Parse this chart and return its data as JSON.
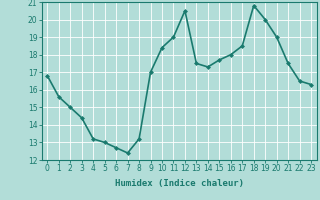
{
  "x": [
    0,
    1,
    2,
    3,
    4,
    5,
    6,
    7,
    8,
    9,
    10,
    11,
    12,
    13,
    14,
    15,
    16,
    17,
    18,
    19,
    20,
    21,
    22,
    23
  ],
  "y": [
    16.8,
    15.6,
    15.0,
    14.4,
    13.2,
    13.0,
    12.7,
    12.4,
    13.2,
    17.0,
    18.4,
    19.0,
    20.5,
    17.5,
    17.3,
    17.7,
    18.0,
    18.5,
    20.8,
    20.0,
    19.0,
    17.5,
    16.5,
    16.3
  ],
  "line_color": "#1a7a6e",
  "marker": "D",
  "marker_size": 2.0,
  "bg_color": "#b2ddd8",
  "grid_color": "#ffffff",
  "xlabel": "Humidex (Indice chaleur)",
  "ylim": [
    12,
    21
  ],
  "xlim": [
    -0.5,
    23.5
  ],
  "yticks": [
    12,
    13,
    14,
    15,
    16,
    17,
    18,
    19,
    20,
    21
  ],
  "xticks": [
    0,
    1,
    2,
    3,
    4,
    5,
    6,
    7,
    8,
    9,
    10,
    11,
    12,
    13,
    14,
    15,
    16,
    17,
    18,
    19,
    20,
    21,
    22,
    23
  ],
  "xlabel_fontsize": 6.5,
  "tick_fontsize": 5.5,
  "line_width": 1.2
}
